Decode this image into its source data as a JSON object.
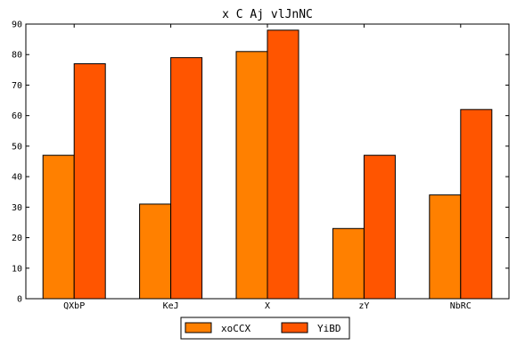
{
  "chart_data": {
    "type": "bar",
    "title": "x C Aj vlJnNC",
    "xlabel": "",
    "ylabel": "",
    "categories": [
      "QXbP",
      "KeJ",
      "X",
      "zY",
      "NbRC"
    ],
    "series": [
      {
        "name": "xoCCX",
        "values": [
          47,
          31,
          81,
          23,
          34
        ],
        "color": "#ff8000"
      },
      {
        "name": "YiBD",
        "values": [
          77,
          79,
          88,
          47,
          62
        ],
        "color": "#ff5500"
      }
    ],
    "ylim": [
      0,
      90
    ],
    "yticks": [
      0,
      10,
      20,
      30,
      40,
      50,
      60,
      70,
      80,
      90
    ],
    "grid": false,
    "legend_position": "bottom-center"
  }
}
